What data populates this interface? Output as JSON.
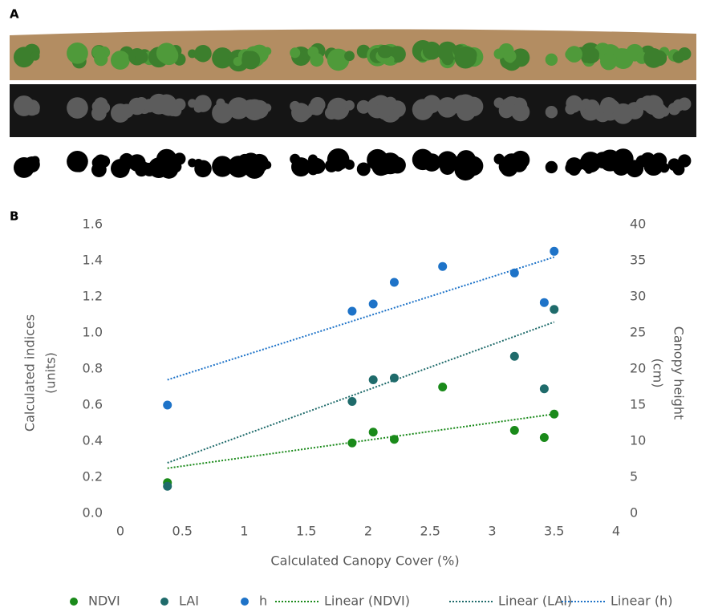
{
  "panels": {
    "a_label": "A",
    "b_label": "B"
  },
  "chart_data": {
    "type": "scatter",
    "x_label": "Calculated Canopy Cover (%)",
    "y_label": [
      "Calculated indices",
      "(units)"
    ],
    "y2_label": [
      "Canopy height",
      "(cm)"
    ],
    "xlim": [
      0,
      4
    ],
    "xticks": [
      0,
      0.5,
      1,
      1.5,
      2,
      2.5,
      3,
      3.5,
      4
    ],
    "ylim": [
      0,
      1.6
    ],
    "yticks": [
      {
        "value": 0,
        "label": "0.0"
      },
      0.2,
      0.4,
      0.6,
      0.8,
      {
        "value": 1,
        "label": "1.0"
      },
      1.2,
      1.4,
      1.6
    ],
    "y2lim": [
      0,
      40
    ],
    "y2ticks": [
      0,
      5,
      10,
      15,
      20,
      25,
      30,
      35,
      40
    ],
    "series": [
      {
        "name": "NDVI",
        "color": "#1a8a1a",
        "x": [
          0.38,
          1.87,
          2.04,
          2.21,
          2.6,
          3.18,
          3.42,
          3.5
        ],
        "values": [
          0.17,
          0.39,
          0.45,
          0.41,
          0.7,
          0.46,
          0.42,
          0.55
        ]
      },
      {
        "name": "LAI",
        "color": "#1f6b6b",
        "x": [
          0.38,
          1.87,
          2.04,
          2.21,
          3.18,
          3.42,
          3.5
        ],
        "values": [
          0.15,
          0.62,
          0.74,
          0.75,
          0.87,
          0.69,
          1.13
        ]
      },
      {
        "name": "h",
        "color": "#1e73c8",
        "axis": "y2",
        "x": [
          0.38,
          1.87,
          2.04,
          2.21,
          2.6,
          3.18,
          3.42,
          3.5
        ],
        "values": [
          15,
          28,
          29,
          32,
          34.2,
          33.3,
          29.2,
          36.3
        ]
      },
      {
        "name": "Linear (NDVI)",
        "type": "line",
        "color": "#1a8a1a",
        "x": [
          0.38,
          3.5
        ],
        "values": [
          0.25,
          0.55
        ]
      },
      {
        "name": "Linear (LAI)",
        "type": "line",
        "color": "#1f6b6b",
        "x": [
          0.38,
          3.5
        ],
        "values": [
          0.28,
          1.06
        ]
      },
      {
        "name": "Linear (h)",
        "type": "line",
        "color": "#1e73c8",
        "axis": "y2",
        "x": [
          0.38,
          3.5
        ],
        "values": [
          18.5,
          35.5
        ]
      }
    ]
  }
}
